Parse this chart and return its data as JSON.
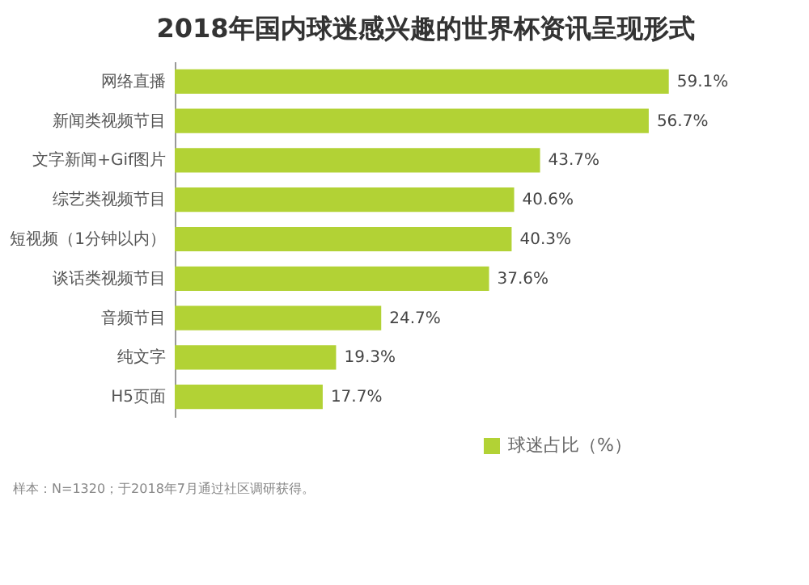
{
  "chart_data": {
    "type": "bar",
    "orientation": "horizontal",
    "title": "2018年国内球迷感兴趣的世界杯资讯呈现形式",
    "categories": [
      "网络直播",
      "新闻类视频节目",
      "文字新闻+Gif图片",
      "综艺类视频节目",
      "短视频（1分钟以内）",
      "谈话类视频节目",
      "音频节目",
      "纯文字",
      "H5页面"
    ],
    "series": [
      {
        "name": "球迷占比（%）",
        "color": "#b2d235",
        "values": [
          59.1,
          56.7,
          43.7,
          40.6,
          40.3,
          37.6,
          24.7,
          19.3,
          17.7
        ],
        "value_labels": [
          "59.1%",
          "56.7%",
          "43.7%",
          "40.6%",
          "40.3%",
          "37.6%",
          "24.7%",
          "19.3%",
          "17.7%"
        ]
      }
    ],
    "legend": "bottom right",
    "annotations": [
      "样本：N=1320；于2018年7月通过社区调研获得。"
    ]
  }
}
